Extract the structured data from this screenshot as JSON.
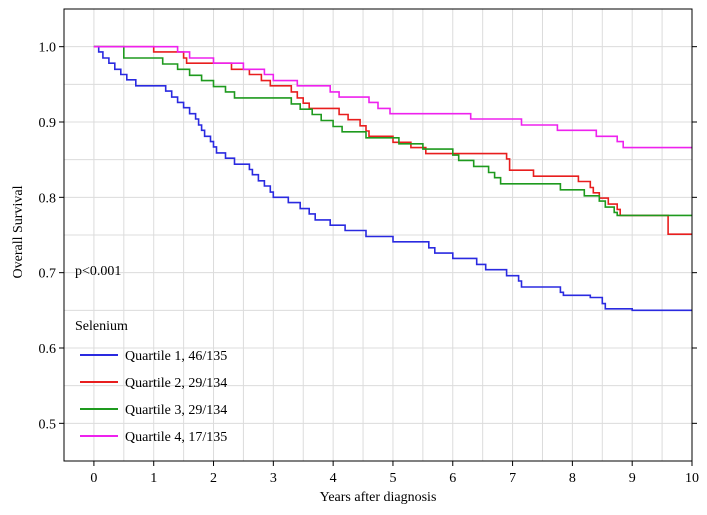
{
  "chart_data": {
    "type": "line",
    "title": "",
    "xlabel": "Years after diagnosis",
    "ylabel": "Overall Survival",
    "xlim": [
      -0.5,
      10
    ],
    "ylim": [
      0.45,
      1.05
    ],
    "xticks": [
      0,
      1,
      2,
      3,
      4,
      5,
      6,
      7,
      8,
      9,
      10
    ],
    "yticks": [
      0.5,
      0.6,
      0.7,
      0.8,
      0.9,
      1.0
    ],
    "ytick_labels": [
      "0.5",
      "0.6",
      "0.7",
      "0.8",
      "0.9",
      "1.0"
    ],
    "grid": true,
    "annotation": "p<0.001",
    "legend_title": "Selenium",
    "legend_position": "bottom-left",
    "series": [
      {
        "name": "Quartile 1, 46/135",
        "color": "#2a2ae0",
        "steps": [
          [
            0,
            1.0
          ],
          [
            0.08,
            0.993
          ],
          [
            0.15,
            0.985
          ],
          [
            0.25,
            0.978
          ],
          [
            0.35,
            0.97
          ],
          [
            0.45,
            0.963
          ],
          [
            0.55,
            0.956
          ],
          [
            0.7,
            0.948
          ],
          [
            1.2,
            0.941
          ],
          [
            1.3,
            0.933
          ],
          [
            1.4,
            0.926
          ],
          [
            1.5,
            0.919
          ],
          [
            1.6,
            0.911
          ],
          [
            1.7,
            0.904
          ],
          [
            1.75,
            0.896
          ],
          [
            1.8,
            0.889
          ],
          [
            1.85,
            0.881
          ],
          [
            1.95,
            0.874
          ],
          [
            2.0,
            0.867
          ],
          [
            2.05,
            0.859
          ],
          [
            2.2,
            0.852
          ],
          [
            2.35,
            0.844
          ],
          [
            2.6,
            0.837
          ],
          [
            2.65,
            0.83
          ],
          [
            2.75,
            0.822
          ],
          [
            2.85,
            0.815
          ],
          [
            2.95,
            0.807
          ],
          [
            3.0,
            0.8
          ],
          [
            3.25,
            0.793
          ],
          [
            3.45,
            0.785
          ],
          [
            3.6,
            0.778
          ],
          [
            3.7,
            0.77
          ],
          [
            3.95,
            0.763
          ],
          [
            4.2,
            0.756
          ],
          [
            4.55,
            0.748
          ],
          [
            5.0,
            0.741
          ],
          [
            5.6,
            0.733
          ],
          [
            5.7,
            0.726
          ],
          [
            6.0,
            0.719
          ],
          [
            6.4,
            0.711
          ],
          [
            6.55,
            0.704
          ],
          [
            6.9,
            0.696
          ],
          [
            7.1,
            0.689
          ],
          [
            7.15,
            0.681
          ],
          [
            7.8,
            0.674
          ],
          [
            7.85,
            0.67
          ],
          [
            8.3,
            0.667
          ],
          [
            8.5,
            0.659
          ],
          [
            8.55,
            0.652
          ],
          [
            9.0,
            0.65
          ],
          [
            10.0,
            0.65
          ]
        ]
      },
      {
        "name": "Quartile 2, 29/134",
        "color": "#e81e1e",
        "steps": [
          [
            0,
            1.0
          ],
          [
            1.0,
            0.993
          ],
          [
            1.5,
            0.985
          ],
          [
            1.55,
            0.978
          ],
          [
            2.3,
            0.97
          ],
          [
            2.6,
            0.963
          ],
          [
            2.8,
            0.955
          ],
          [
            2.95,
            0.948
          ],
          [
            3.3,
            0.94
          ],
          [
            3.4,
            0.932
          ],
          [
            3.5,
            0.925
          ],
          [
            3.6,
            0.918
          ],
          [
            4.1,
            0.91
          ],
          [
            4.25,
            0.903
          ],
          [
            4.45,
            0.895
          ],
          [
            4.55,
            0.888
          ],
          [
            4.6,
            0.881
          ],
          [
            5.0,
            0.873
          ],
          [
            5.3,
            0.866
          ],
          [
            5.55,
            0.858
          ],
          [
            6.1,
            0.858
          ],
          [
            6.9,
            0.851
          ],
          [
            6.95,
            0.836
          ],
          [
            7.35,
            0.828
          ],
          [
            8.1,
            0.821
          ],
          [
            8.3,
            0.813
          ],
          [
            8.35,
            0.806
          ],
          [
            8.45,
            0.799
          ],
          [
            8.6,
            0.791
          ],
          [
            8.75,
            0.784
          ],
          [
            8.8,
            0.776
          ],
          [
            9.6,
            0.751
          ],
          [
            10.0,
            0.751
          ]
        ]
      },
      {
        "name": "Quartile 3, 29/134",
        "color": "#1e9a1e",
        "steps": [
          [
            0,
            1.0
          ],
          [
            0.5,
            0.985
          ],
          [
            1.15,
            0.977
          ],
          [
            1.4,
            0.97
          ],
          [
            1.6,
            0.962
          ],
          [
            1.8,
            0.955
          ],
          [
            2.0,
            0.947
          ],
          [
            2.2,
            0.94
          ],
          [
            2.35,
            0.932
          ],
          [
            3.3,
            0.924
          ],
          [
            3.45,
            0.917
          ],
          [
            3.65,
            0.91
          ],
          [
            3.8,
            0.902
          ],
          [
            4.0,
            0.894
          ],
          [
            4.15,
            0.887
          ],
          [
            4.55,
            0.879
          ],
          [
            5.1,
            0.871
          ],
          [
            5.5,
            0.864
          ],
          [
            6.0,
            0.856
          ],
          [
            6.1,
            0.849
          ],
          [
            6.35,
            0.841
          ],
          [
            6.6,
            0.833
          ],
          [
            6.7,
            0.826
          ],
          [
            6.8,
            0.818
          ],
          [
            7.8,
            0.81
          ],
          [
            8.2,
            0.802
          ],
          [
            8.45,
            0.795
          ],
          [
            8.55,
            0.787
          ],
          [
            8.7,
            0.78
          ],
          [
            8.75,
            0.776
          ],
          [
            10.0,
            0.776
          ]
        ]
      },
      {
        "name": "Quartile 4, 17/135",
        "color": "#ee22ee",
        "steps": [
          [
            0,
            1.0
          ],
          [
            1.4,
            0.993
          ],
          [
            1.6,
            0.985
          ],
          [
            2.0,
            0.978
          ],
          [
            2.5,
            0.97
          ],
          [
            2.85,
            0.963
          ],
          [
            3.0,
            0.955
          ],
          [
            3.4,
            0.948
          ],
          [
            3.95,
            0.94
          ],
          [
            4.1,
            0.933
          ],
          [
            4.6,
            0.926
          ],
          [
            4.75,
            0.918
          ],
          [
            4.95,
            0.911
          ],
          [
            6.3,
            0.904
          ],
          [
            7.15,
            0.896
          ],
          [
            7.75,
            0.889
          ],
          [
            8.4,
            0.881
          ],
          [
            8.75,
            0.874
          ],
          [
            8.85,
            0.866
          ],
          [
            10.0,
            0.866
          ]
        ]
      }
    ]
  }
}
